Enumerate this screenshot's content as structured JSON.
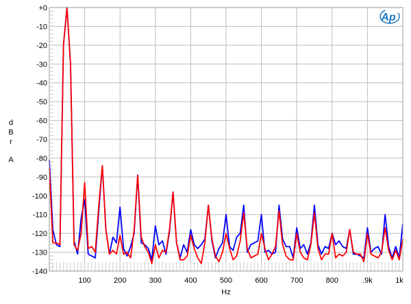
{
  "chart_data": {
    "type": "line",
    "xlabel": "Hz",
    "ylabel": [
      "d",
      "B",
      "r",
      "",
      "A"
    ],
    "xlim": [
      0,
      1000
    ],
    "ylim": [
      -140,
      0
    ],
    "grid": true,
    "xticks": [
      {
        "v": 100,
        "label": "100"
      },
      {
        "v": 200,
        "label": "200"
      },
      {
        "v": 300,
        "label": "300"
      },
      {
        "v": 400,
        "label": "400"
      },
      {
        "v": 500,
        "label": "500"
      },
      {
        "v": 600,
        "label": "600"
      },
      {
        "v": 700,
        "label": "700"
      },
      {
        "v": 800,
        "label": "800"
      },
      {
        "v": 900,
        "label": ".9k"
      },
      {
        "v": 1000,
        "label": "1k"
      }
    ],
    "yticks": [
      {
        "v": 0,
        "label": "+0"
      },
      {
        "v": -10,
        "label": "-10"
      },
      {
        "v": -20,
        "label": "-20"
      },
      {
        "v": -30,
        "label": "-30"
      },
      {
        "v": -40,
        "label": "-40"
      },
      {
        "v": -50,
        "label": "-50"
      },
      {
        "v": -60,
        "label": "-60"
      },
      {
        "v": -70,
        "label": "-70"
      },
      {
        "v": -80,
        "label": "-80"
      },
      {
        "v": -90,
        "label": "-90"
      },
      {
        "v": -100,
        "label": "-100"
      },
      {
        "v": -110,
        "label": "-110"
      },
      {
        "v": -120,
        "label": "-120"
      },
      {
        "v": -130,
        "label": "-130"
      },
      {
        "v": -140,
        "label": "-140"
      }
    ],
    "x_step_hz": 10,
    "series": [
      {
        "color": "#0000ff",
        "values": [
          -81,
          -118,
          -126,
          -127,
          -20,
          0,
          -30,
          -124,
          -131,
          -112,
          -102,
          -131,
          -132,
          -133,
          -108,
          -84,
          -118,
          -131,
          -122,
          -125,
          -106,
          -128,
          -132,
          -127,
          -120,
          -89,
          -125,
          -126,
          -128,
          -134,
          -116,
          -126,
          -124,
          -131,
          -119,
          -98,
          -125,
          -133,
          -126,
          -130,
          -118,
          -126,
          -128,
          -126,
          -123,
          -105,
          -124,
          -133,
          -128,
          -125,
          -110,
          -127,
          -129,
          -122,
          -120,
          -105,
          -130,
          -126,
          -125,
          -124,
          -110,
          -130,
          -129,
          -131,
          -130,
          -105,
          -123,
          -127,
          -127,
          -133,
          -117,
          -128,
          -126,
          -131,
          -125,
          -105,
          -126,
          -131,
          -127,
          -128,
          -120,
          -126,
          -124,
          -127,
          -128,
          -118,
          -131,
          -131,
          -132,
          -133,
          -117,
          -130,
          -128,
          -127,
          -131,
          -110,
          -127,
          -133,
          -127,
          -133,
          -115
        ]
      },
      {
        "color": "#ff0000",
        "values": [
          -85,
          -125,
          -125,
          -126,
          -20,
          0,
          -30,
          -126,
          -129,
          -120,
          -93,
          -128,
          -127,
          -130,
          -105,
          -84,
          -118,
          -131,
          -129,
          -131,
          -121,
          -131,
          -130,
          -133,
          -118,
          -89,
          -122,
          -127,
          -130,
          -136,
          -126,
          -133,
          -129,
          -130,
          -118,
          -98,
          -125,
          -134,
          -134,
          -132,
          -121,
          -128,
          -133,
          -136,
          -125,
          -105,
          -123,
          -132,
          -135,
          -130,
          -120,
          -128,
          -134,
          -132,
          -124,
          -109,
          -128,
          -133,
          -132,
          -131,
          -120,
          -128,
          -134,
          -131,
          -127,
          -108,
          -126,
          -132,
          -134,
          -134,
          -120,
          -130,
          -133,
          -134,
          -126,
          -109,
          -128,
          -134,
          -131,
          -131,
          -120,
          -133,
          -131,
          -132,
          -130,
          -118,
          -130,
          -131,
          -131,
          -135,
          -120,
          -131,
          -132,
          -133,
          -130,
          -117,
          -129,
          -134,
          -129,
          -134,
          -123
        ]
      }
    ]
  },
  "logo": {
    "text": "Ap",
    "color": "#1a78c2"
  }
}
